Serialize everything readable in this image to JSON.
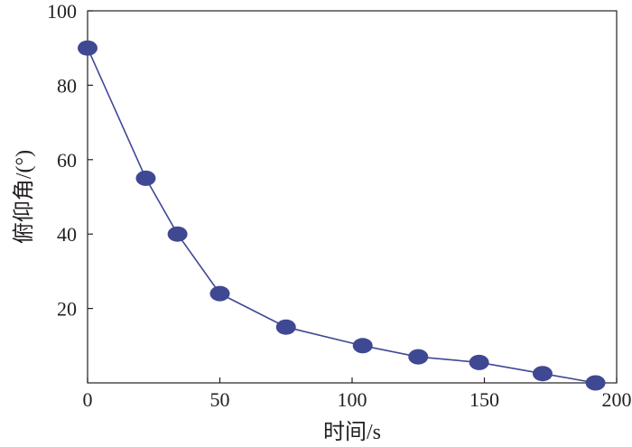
{
  "chart_data": {
    "type": "line",
    "title": "",
    "xlabel": "时间/s",
    "ylabel": "俯仰角/(°)",
    "xlim": [
      0,
      200
    ],
    "ylim": [
      0,
      100
    ],
    "xticks": [
      0,
      50,
      100,
      150,
      200
    ],
    "yticks": [
      20,
      40,
      60,
      80,
      100
    ],
    "xtick_labels": [
      "0",
      "50",
      "100",
      "150",
      "200"
    ],
    "ytick_labels": [
      "20",
      "40",
      "60",
      "80",
      "100"
    ],
    "grid": false,
    "legend": "none",
    "series": [
      {
        "x": [
          0,
          22,
          34,
          50,
          75,
          104,
          125,
          148,
          172,
          192
        ],
        "y": [
          90,
          55,
          40,
          24,
          15,
          10,
          7,
          5.5,
          2.5,
          0
        ],
        "color": "#3f4893",
        "marker": "ellipse"
      }
    ]
  }
}
